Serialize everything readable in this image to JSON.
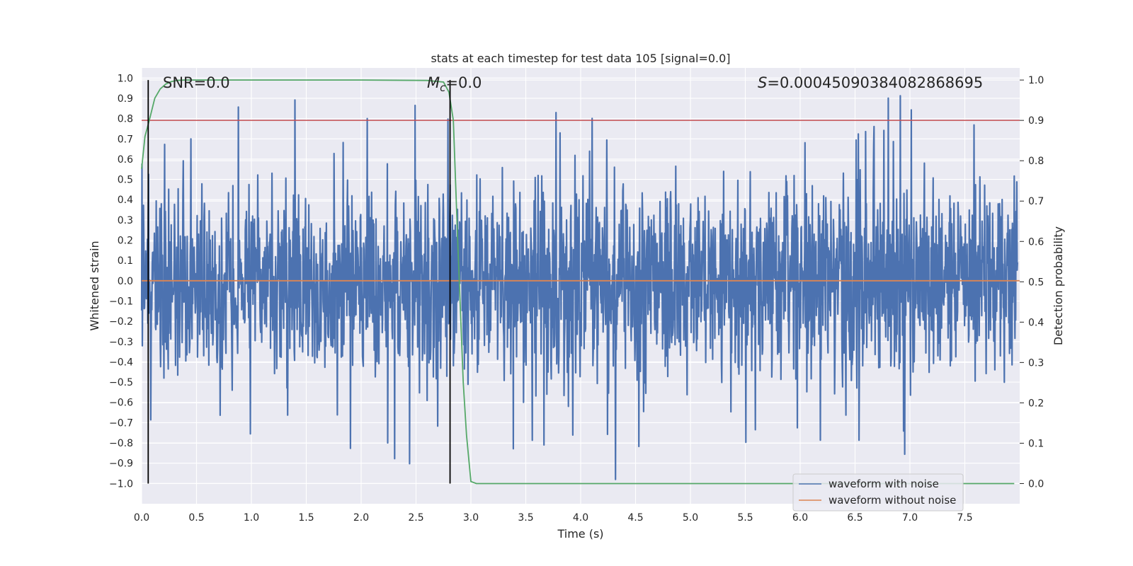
{
  "chart_data": {
    "type": "line",
    "title": "stats at each timestep for test data 105 [signal=0.0]",
    "xlabel": "Time (s)",
    "ylabel": "Whitened strain",
    "y2label": "Detection probability",
    "xlim": [
      0.0,
      8.0
    ],
    "ylim": [
      -1.1,
      1.05
    ],
    "y2lim": [
      -0.05,
      1.03
    ],
    "x_ticks": [
      "0.0",
      "0.5",
      "1.0",
      "1.5",
      "2.0",
      "2.5",
      "3.0",
      "3.5",
      "4.0",
      "4.5",
      "5.0",
      "5.5",
      "6.0",
      "6.5",
      "7.0",
      "7.5"
    ],
    "y_ticks": [
      "1.0",
      "0.9",
      "0.8",
      "0.7",
      "0.6",
      "0.5",
      "0.4",
      "0.3",
      "0.2",
      "0.1",
      "0.0",
      "-0.1",
      "-0.2",
      "-0.3",
      "-0.4",
      "-0.5",
      "-0.6",
      "-0.7",
      "-0.8",
      "-0.9",
      "-1.0"
    ],
    "y2_ticks": [
      "1.0",
      "0.9",
      "0.8",
      "0.7",
      "0.6",
      "0.5",
      "0.4",
      "0.3",
      "0.2",
      "0.1",
      "0.0"
    ],
    "annotations": {
      "snr": "SNR=0.0",
      "mc_symbol": "M",
      "mc_sub": "c",
      "mc_value": "=0.0",
      "s_symbol": "S",
      "s_value": "=0.00045090384082868695"
    },
    "legend": {
      "position": "lower-right",
      "entries": [
        "waveform with noise",
        "waveform without noise"
      ]
    },
    "series": [
      {
        "name": "waveform with noise",
        "axis": "left",
        "color": "#4c72b0",
        "description": "whitened noise, amplitude roughly within -1.0..0.95"
      },
      {
        "name": "waveform without noise",
        "axis": "left",
        "color": "#dd8452",
        "y_constant": 0.0
      },
      {
        "name": "detection probability",
        "axis": "right",
        "color": "#55a868",
        "x": [
          0.0,
          0.03,
          0.07,
          0.12,
          0.17,
          0.22,
          0.27,
          0.32,
          0.4,
          0.6,
          1.0,
          2.0,
          2.6,
          2.75,
          2.8,
          2.84,
          2.88,
          2.93,
          2.96,
          3.0,
          3.05,
          3.1,
          3.5,
          5.0,
          6.5,
          7.95
        ],
        "y": [
          0.78,
          0.86,
          0.9,
          0.955,
          0.978,
          0.99,
          0.996,
          0.999,
          1.0,
          1.0,
          1.0,
          1.0,
          0.999,
          0.995,
          0.97,
          0.9,
          0.6,
          0.25,
          0.12,
          0.005,
          0.0,
          0.0,
          0.0,
          0.0,
          0.0,
          0.0
        ]
      },
      {
        "name": "threshold",
        "axis": "right",
        "color": "#c44e52",
        "y_constant": 0.9
      }
    ],
    "vertical_lines": [
      {
        "x": 0.06,
        "color": "#000000"
      },
      {
        "x": 2.81,
        "color": "#000000"
      }
    ]
  }
}
